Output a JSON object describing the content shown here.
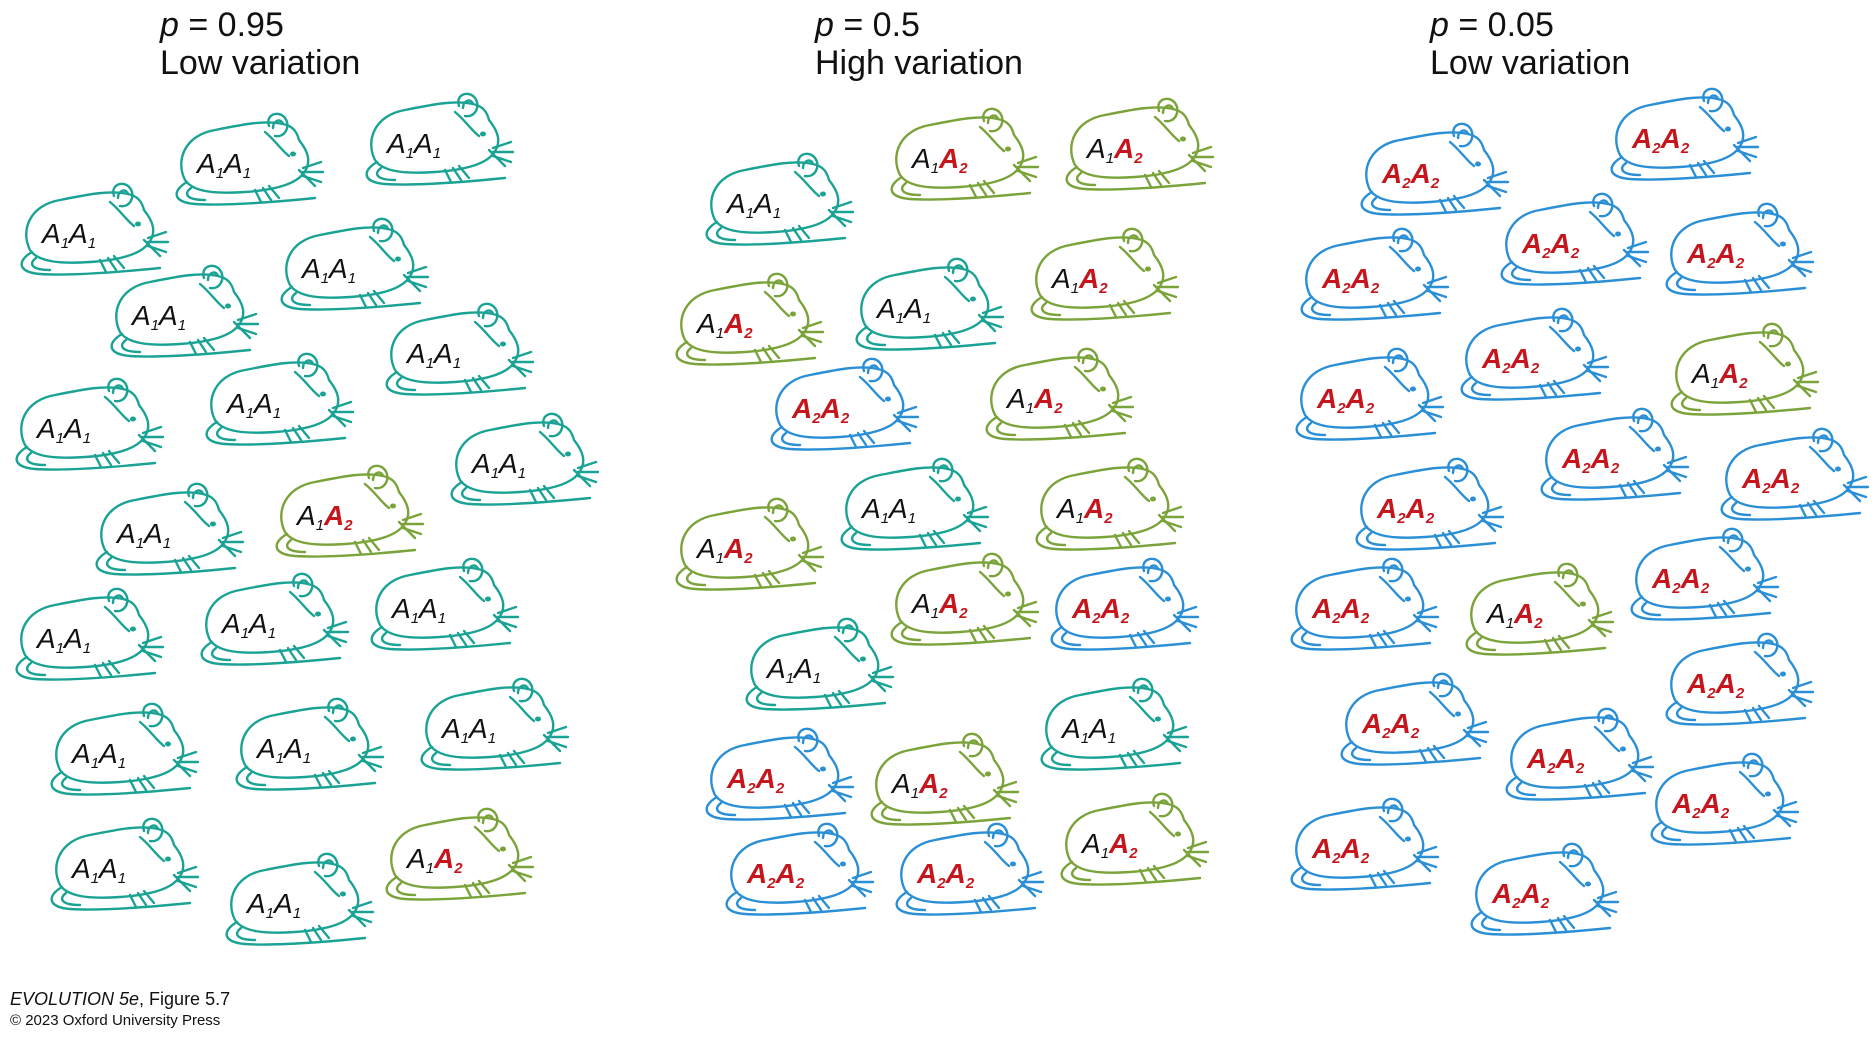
{
  "panels": [
    {
      "p_label": "p",
      "p_value": "= 0.95",
      "variation": "Low variation",
      "color_A1A1": "#1aa394",
      "mice": [
        "A1A1",
        "A1A1",
        "A1A1",
        "A1A1",
        "A1A1",
        "A1A1",
        "A1A1",
        "A1A1",
        "A1A1",
        "A1A1",
        "A1A2",
        "A1A1",
        "A1A1",
        "A1A1",
        "A1A1",
        "A1A1",
        "A1A1",
        "A1A1",
        "A1A1",
        "A1A2"
      ]
    },
    {
      "p_label": "p",
      "p_value": "= 0.5",
      "variation": "High variation",
      "mice": [
        "A1A2",
        "A1A2",
        "A1A1",
        "A1A2",
        "A1A1",
        "A1A2",
        "A2A2",
        "A1A2",
        "A1A1",
        "A1A2",
        "A1A2",
        "A1A2",
        "A2A2",
        "A1A1",
        "A1A1",
        "A2A2",
        "A1A2",
        "A1A2",
        "A2A2",
        "A2A2"
      ]
    },
    {
      "p_label": "p",
      "p_value": "= 0.05",
      "variation": "Low variation",
      "mice": [
        "A2A2",
        "A2A2",
        "A2A2",
        "A2A2",
        "A2A2",
        "A2A2",
        "A1A2",
        "A2A2",
        "A2A2",
        "A2A2",
        "A2A2",
        "A2A2",
        "A1A2",
        "A2A2",
        "A2A2",
        "A2A2",
        "A2A2",
        "A2A2",
        "A2A2",
        "A2A2"
      ]
    }
  ],
  "colors": {
    "A1A1": "#1aa394",
    "A1A2": "#7aa33a",
    "A2A2": "#2b8fd6",
    "allele_A2_text": "#c4161c"
  },
  "icons": {
    "mouse": "mouse-outline-icon"
  },
  "credit": {
    "book": "EVOLUTION 5e",
    "figure": ", Figure 5.7",
    "copyright": "© 2023 Oxford University Press"
  }
}
